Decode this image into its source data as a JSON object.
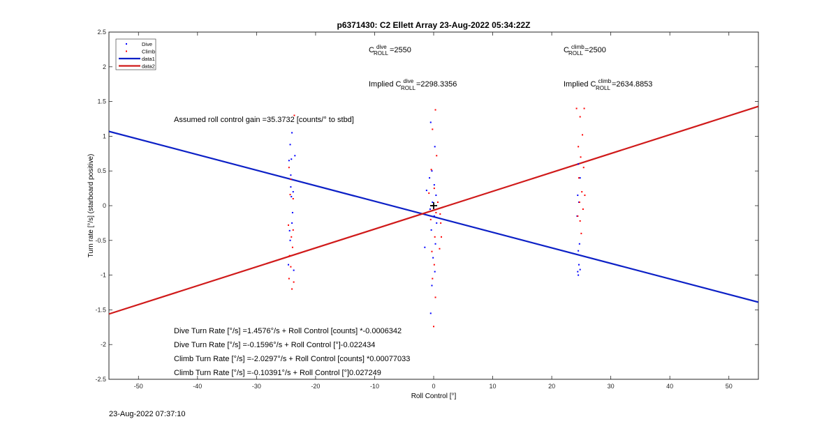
{
  "chart_data": {
    "type": "scatter",
    "title": "p6371430: C2 Ellett Array 23-Aug-2022 05:34:22Z",
    "xlabel": "Roll Control [°]",
    "ylabel": "Turn rate [°/s] (starboard positive)",
    "xlim": [
      -55,
      55
    ],
    "ylim": [
      -2.5,
      2.5
    ],
    "xticks": [
      -50,
      -40,
      -30,
      -20,
      -10,
      0,
      10,
      20,
      30,
      40,
      50
    ],
    "yticks": [
      -2.5,
      -2,
      -1.5,
      -1,
      -0.5,
      0,
      0.5,
      1,
      1.5,
      2,
      2.5
    ],
    "ytick_labels": [
      "-2.5",
      "-2",
      "-1.5",
      "-1",
      "-0.5",
      "0",
      "0.5",
      "1",
      "1.5",
      "2",
      "2.5"
    ],
    "grid": false,
    "legend_position": "top-left",
    "legend": [
      {
        "label": "Dive",
        "color": "#0000ff",
        "style": "marker"
      },
      {
        "label": "Climb",
        "color": "#ff0000",
        "style": "marker"
      },
      {
        "label": "data1",
        "color": "#0c20c6",
        "style": "line"
      },
      {
        "label": "data2",
        "color": "#d01a1a",
        "style": "line"
      }
    ],
    "series": [
      {
        "name": "Dive",
        "kind": "points",
        "color": "#0000ff",
        "points": [
          [
            -24,
            1.05
          ],
          [
            -24.3,
            0.88
          ],
          [
            -24.5,
            0.65
          ],
          [
            -24.2,
            0.44
          ],
          [
            -23.8,
            0.2
          ],
          [
            -24.1,
            0.13
          ],
          [
            -23.9,
            -0.1
          ],
          [
            -24.3,
            -0.5
          ],
          [
            -23.5,
            0.72
          ],
          [
            -24.4,
            -0.36
          ],
          [
            -24.6,
            -0.85
          ],
          [
            -23.7,
            -0.93
          ],
          [
            -24.0,
            -0.25
          ],
          [
            -24.2,
            0.27
          ],
          [
            -24.1,
            0.67
          ],
          [
            -0.5,
            1.2
          ],
          [
            0.2,
            0.85
          ],
          [
            -0.3,
            0.5
          ],
          [
            0.1,
            0.3
          ],
          [
            -0.2,
            0.05
          ],
          [
            0.1,
            -0.15
          ],
          [
            -0.4,
            -0.35
          ],
          [
            0.3,
            -0.55
          ],
          [
            -0.1,
            -0.75
          ],
          [
            0.2,
            -0.95
          ],
          [
            -0.3,
            -1.15
          ],
          [
            -0.5,
            -1.55
          ],
          [
            -1.2,
            0.22
          ],
          [
            -1.5,
            -0.6
          ],
          [
            0.4,
            0.15
          ],
          [
            -0.6,
            -0.05
          ],
          [
            0.5,
            -0.25
          ],
          [
            -0.7,
            0.4
          ],
          [
            24.5,
            0.6
          ],
          [
            24.8,
            0.4
          ],
          [
            24.4,
            0.15
          ],
          [
            24.6,
            0.05
          ],
          [
            24.3,
            -0.15
          ],
          [
            24.7,
            -0.55
          ],
          [
            24.5,
            -0.65
          ],
          [
            24.6,
            -0.85
          ],
          [
            24.4,
            -0.95
          ],
          [
            24.5,
            -1.0
          ],
          [
            24.8,
            -0.92
          ]
        ]
      },
      {
        "name": "Climb",
        "kind": "points",
        "color": "#ff0000",
        "points": [
          [
            -23.6,
            1.3
          ],
          [
            -24.5,
            0.55
          ],
          [
            -24.2,
            0.38
          ],
          [
            -23.8,
            0.1
          ],
          [
            -24.6,
            -0.28
          ],
          [
            -24.1,
            -0.45
          ],
          [
            -23.9,
            -0.6
          ],
          [
            -24.4,
            -0.72
          ],
          [
            -24.2,
            -0.88
          ],
          [
            -23.7,
            -1.1
          ],
          [
            -24.0,
            -1.2
          ],
          [
            -24.5,
            -1.05
          ],
          [
            -24.3,
            0.16
          ],
          [
            -23.8,
            -0.35
          ],
          [
            0.3,
            1.38
          ],
          [
            -0.2,
            1.1
          ],
          [
            0.5,
            0.72
          ],
          [
            -0.4,
            0.52
          ],
          [
            0.1,
            0.25
          ],
          [
            -0.2,
            0.0
          ],
          [
            0.4,
            -0.1
          ],
          [
            -0.5,
            -0.2
          ],
          [
            0.2,
            -0.45
          ],
          [
            -0.3,
            -0.66
          ],
          [
            0.1,
            -0.85
          ],
          [
            -0.2,
            -1.05
          ],
          [
            0.3,
            -1.32
          ],
          [
            0.0,
            -1.74
          ],
          [
            1.1,
            -0.12
          ],
          [
            1.2,
            -0.25
          ],
          [
            1.3,
            -0.45
          ],
          [
            1.0,
            -0.62
          ],
          [
            -0.8,
            0.18
          ],
          [
            0.7,
            0.05
          ],
          [
            24.2,
            1.4
          ],
          [
            25.5,
            1.4
          ],
          [
            24.8,
            1.28
          ],
          [
            25.2,
            1.02
          ],
          [
            24.5,
            0.85
          ],
          [
            24.9,
            0.7
          ],
          [
            25.4,
            0.55
          ],
          [
            24.6,
            0.4
          ],
          [
            25.1,
            0.2
          ],
          [
            24.7,
            0.05
          ],
          [
            25.3,
            -0.05
          ],
          [
            24.8,
            -0.22
          ],
          [
            25.0,
            -0.4
          ],
          [
            24.4,
            -0.15
          ],
          [
            25.6,
            0.15
          ]
        ]
      },
      {
        "name": "data1",
        "kind": "line",
        "color": "#0c20c6",
        "x": [
          -55,
          55
        ],
        "y": [
          1.07,
          -1.39
        ]
      },
      {
        "name": "data2",
        "kind": "line",
        "color": "#d01a1a",
        "x": [
          -55,
          55
        ],
        "y": [
          -1.56,
          1.43
        ]
      }
    ],
    "marker": {
      "x": 0,
      "y": 0,
      "symbol": "+"
    },
    "annotations": {
      "c_roll_dive": {
        "base": "C",
        "sup": "dive",
        "sub": "ROLL",
        "value": " =2550"
      },
      "c_roll_climb": {
        "base": "C",
        "sup": "climb",
        "sub": "ROLL",
        "value": " =2500"
      },
      "implied_dive": {
        "prefix": "Implied C",
        "sup": "dive",
        "sub": "ROLL",
        "value": " =2298.3356"
      },
      "implied_climb": {
        "prefix": "Implied C",
        "sup": "climb",
        "sub": "ROLL",
        "value": " =2634.8853"
      },
      "gain": "Assumed roll control gain =35.3732 [counts/° to stbd]",
      "equations": [
        "Dive Turn Rate [°/s] =1.4576°/s + Roll Control [counts] *-0.0006342",
        "Dive Turn Rate [°/s] =-0.1596°/s + Roll Control [°]-0.022434",
        "Climb Turn Rate [°/s] =-2.0297°/s + Roll Control [counts] *0.00077033",
        "Climb Turn Rate [°/s] =-0.10391°/s + Roll Control [°]0.027249"
      ]
    }
  },
  "footer": {
    "timestamp": "23-Aug-2022 07:37:10"
  }
}
